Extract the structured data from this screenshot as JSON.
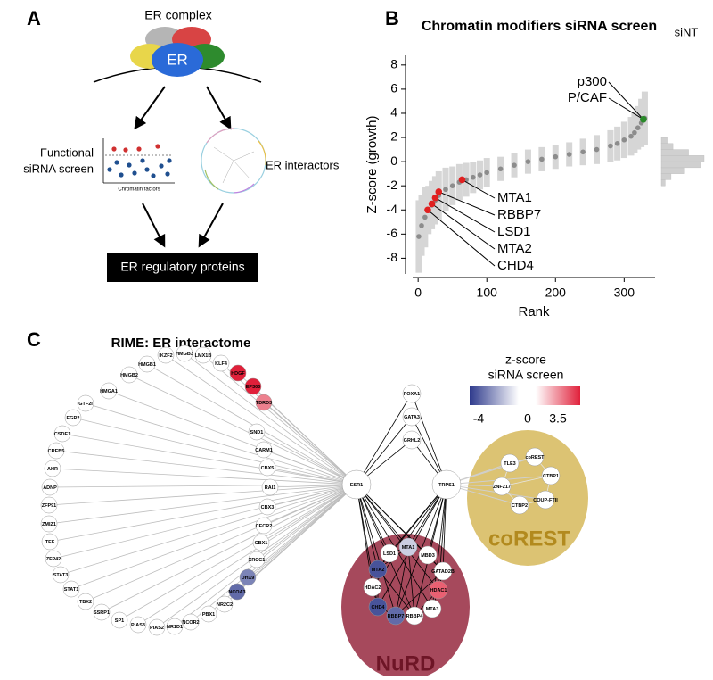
{
  "panel_a": {
    "label": "A",
    "complex": "ER complex",
    "er": "ER",
    "screen": [
      "Functional",
      "siRNA screen"
    ],
    "thumb_axis": "Chromatin factors",
    "interactors": "ER interactors",
    "result": "ER regulatory proteins"
  },
  "chart_data": {
    "type": "scatter",
    "panel_label": "B",
    "title": "Chromatin modifiers siRNA screen",
    "xlabel": "Rank",
    "ylabel": "Z-score (growth)",
    "x": [
      1,
      5,
      10,
      15,
      20,
      25,
      30,
      40,
      50,
      60,
      70,
      80,
      90,
      100,
      120,
      140,
      160,
      180,
      200,
      220,
      240,
      260,
      280,
      290,
      300,
      310,
      315,
      320,
      325,
      330
    ],
    "series": [
      {
        "color": "#8c8c8c",
        "values": [
          -6.2,
          -5.3,
          -4.6,
          -4.0,
          -3.6,
          -3.2,
          -2.8,
          -2.3,
          -2.0,
          -1.7,
          -1.5,
          -1.3,
          -1.1,
          -0.9,
          -0.6,
          -0.3,
          0,
          0.2,
          0.4,
          0.6,
          0.8,
          1.0,
          1.3,
          1.5,
          1.8,
          2.1,
          2.4,
          2.8,
          3.2,
          3.6
        ],
        "errors": [
          3,
          2.5,
          2.5,
          2,
          2,
          2,
          2,
          1.8,
          1.6,
          1.5,
          1.4,
          1.3,
          1.2,
          1.2,
          1,
          1,
          1,
          1,
          1,
          1,
          1.1,
          1.2,
          1.3,
          1.4,
          1.5,
          1.6,
          1.7,
          1.8,
          2,
          2.2
        ]
      }
    ],
    "highlights": [
      {
        "name": "p300",
        "x": 328,
        "value": 3.5,
        "color": "#2a8a2a"
      },
      {
        "name": "P/CAF",
        "x": 328,
        "value": 3.5,
        "color": "#2a8a2a"
      },
      {
        "name": "MTA1",
        "x": 64,
        "value": -1.5,
        "color": "#e02020"
      },
      {
        "name": "RBBP7",
        "x": 30,
        "value": -2.5,
        "color": "#e02020"
      },
      {
        "name": "LSD1",
        "x": 25,
        "value": -3.0,
        "color": "#e02020"
      },
      {
        "name": "MTA2",
        "x": 20,
        "value": -3.5,
        "color": "#e02020"
      },
      {
        "name": "CHD4",
        "x": 14,
        "value": -4.0,
        "color": "#e02020"
      }
    ],
    "xlim": [
      -8,
      345
    ],
    "ylim": [
      -9.3,
      8.8
    ],
    "xticks": [
      0,
      100,
      200,
      300
    ],
    "yticks": [
      -8,
      -6,
      -4,
      -2,
      0,
      2,
      4,
      6,
      8
    ],
    "side_histogram": {
      "label": "siNT",
      "bins": [
        -2,
        -1.5,
        -1,
        -0.5,
        0,
        0.5,
        1,
        1.5,
        2
      ],
      "counts": [
        2,
        5,
        12,
        20,
        22,
        14,
        6,
        3
      ],
      "color": "#d0d0d0"
    }
  },
  "panel_c": {
    "label": "C",
    "title": "RIME: ER interactome",
    "legend": {
      "title": [
        "z-score",
        "siRNA screen"
      ],
      "ticks": [
        -4,
        0,
        3.5
      ]
    },
    "hubs": [
      "ESR1",
      "TRPS1"
    ],
    "shared": [
      "FOXA1",
      "GATA3",
      "GRHL2"
    ],
    "arc": [
      {
        "name": "GTF2I"
      },
      {
        "name": "HMGA1"
      },
      {
        "name": "HMGB2"
      },
      {
        "name": "HMGB1"
      },
      {
        "name": "IKZF2"
      },
      {
        "name": "HMGB3"
      },
      {
        "name": "LMX1B"
      },
      {
        "name": "KLF4"
      },
      {
        "name": "HDGF",
        "z": 3.5
      },
      {
        "name": "EP300",
        "z": 3.5
      },
      {
        "name": "TDRD3",
        "z": 2
      },
      {
        "name": "SND1"
      },
      {
        "name": "CARM1"
      },
      {
        "name": "CBX5"
      },
      {
        "name": "RAI1"
      },
      {
        "name": "CBX3"
      },
      {
        "name": "CECR2"
      },
      {
        "name": "CBX1"
      },
      {
        "name": "XRCC1"
      },
      {
        "name": "DHX9",
        "z": -2.5
      },
      {
        "name": "NCOA3",
        "z": -3
      },
      {
        "name": "NR2C2"
      },
      {
        "name": "PBX1"
      },
      {
        "name": "NCOR2"
      },
      {
        "name": "NR1D1"
      },
      {
        "name": "PIAS2"
      },
      {
        "name": "PIAS3"
      },
      {
        "name": "SP1"
      },
      {
        "name": "SSRP1"
      },
      {
        "name": "TBX2"
      },
      {
        "name": "STAT1"
      },
      {
        "name": "STAT3"
      },
      {
        "name": "ZFP42"
      },
      {
        "name": "TEF"
      },
      {
        "name": "ZMIZ1"
      },
      {
        "name": "ZFP91"
      },
      {
        "name": "ADNP"
      },
      {
        "name": "AHR"
      },
      {
        "name": "CREB5"
      },
      {
        "name": "CSDE1"
      },
      {
        "name": "EGR2"
      }
    ],
    "nurd": {
      "label": "NuRD",
      "nodes": [
        {
          "name": "LSD1"
        },
        {
          "name": "MTA1",
          "z": -1
        },
        {
          "name": "MBD3"
        },
        {
          "name": "MTA2",
          "z": -3.5
        },
        {
          "name": "GATAD2B"
        },
        {
          "name": "HDAC2"
        },
        {
          "name": "HDAC1",
          "z": 2.5
        },
        {
          "name": "CHD4",
          "z": -3.5
        },
        {
          "name": "RBBP7",
          "z": -3
        },
        {
          "name": "RBBP4"
        },
        {
          "name": "MTA3"
        }
      ]
    },
    "corest": {
      "label": "coREST",
      "nodes": [
        {
          "name": "TLE3"
        },
        {
          "name": "coREST"
        },
        {
          "name": "CTBP1"
        },
        {
          "name": "ZNF217"
        },
        {
          "name": "COUP-FTII"
        },
        {
          "name": "CTBP2"
        }
      ]
    }
  }
}
